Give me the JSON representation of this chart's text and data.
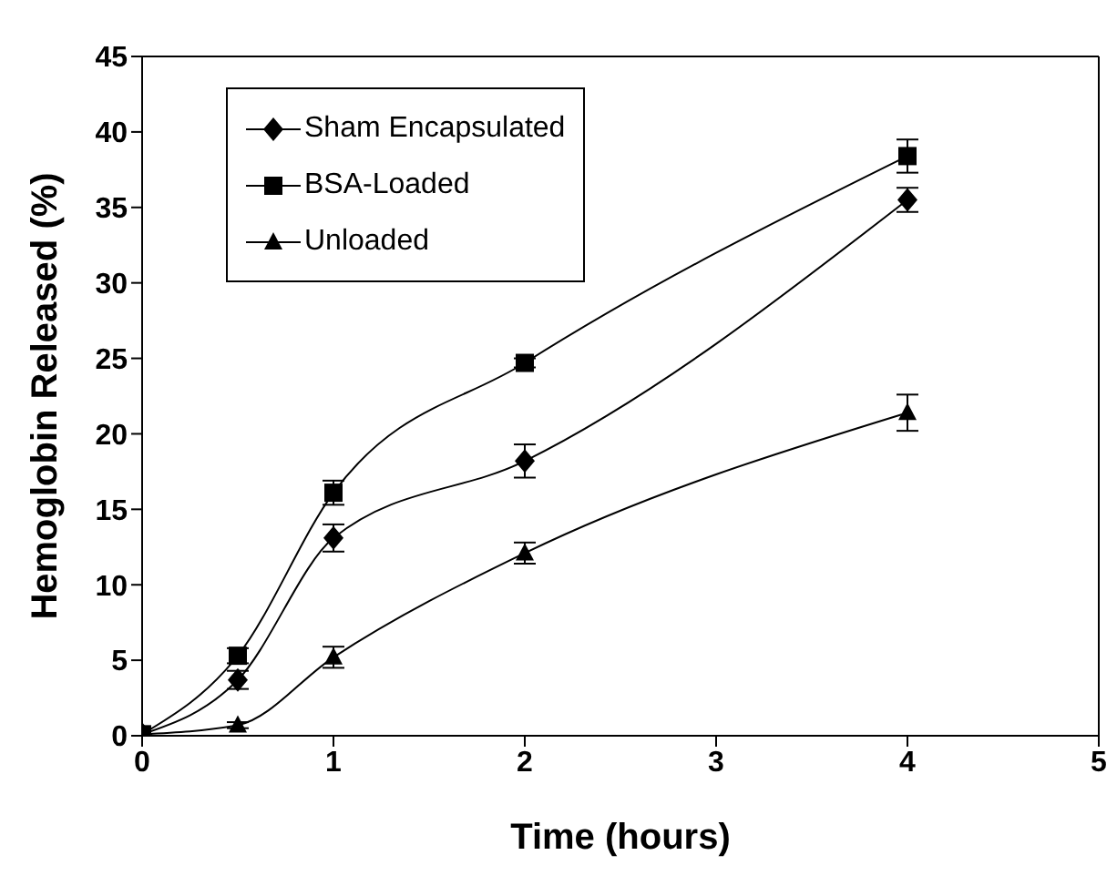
{
  "chart_data": {
    "type": "line",
    "xlabel": "Time (hours)",
    "ylabel": "Hemoglobin Released (%)",
    "x": [
      0,
      0.5,
      1,
      2,
      4
    ],
    "series": [
      {
        "name": "Sham Encapsulated",
        "color": "#000000",
        "marker": "diamond",
        "values": [
          0.1,
          3.7,
          13.1,
          18.2,
          35.5
        ],
        "errors": [
          null,
          0.6,
          0.9,
          1.1,
          0.8
        ]
      },
      {
        "name": "BSA-Loaded",
        "color": "#000000",
        "marker": "square",
        "values": [
          0.1,
          5.3,
          16.1,
          24.7,
          38.4
        ],
        "errors": [
          null,
          0.5,
          0.8,
          0.3,
          1.1
        ]
      },
      {
        "name": "Unloaded",
        "color": "#000000",
        "marker": "triangle",
        "values": [
          0.1,
          0.7,
          5.2,
          12.1,
          21.4
        ],
        "errors": [
          null,
          0.2,
          0.7,
          0.7,
          1.2
        ]
      }
    ],
    "xlim": [
      0,
      5
    ],
    "xticks": [
      0,
      1,
      2,
      3,
      4,
      5
    ],
    "ylim": [
      0,
      45
    ],
    "yticks": [
      0,
      5,
      10,
      15,
      20,
      25,
      30,
      35,
      40,
      45
    ],
    "grid": false,
    "legend": "top left",
    "line_style": "solid"
  }
}
